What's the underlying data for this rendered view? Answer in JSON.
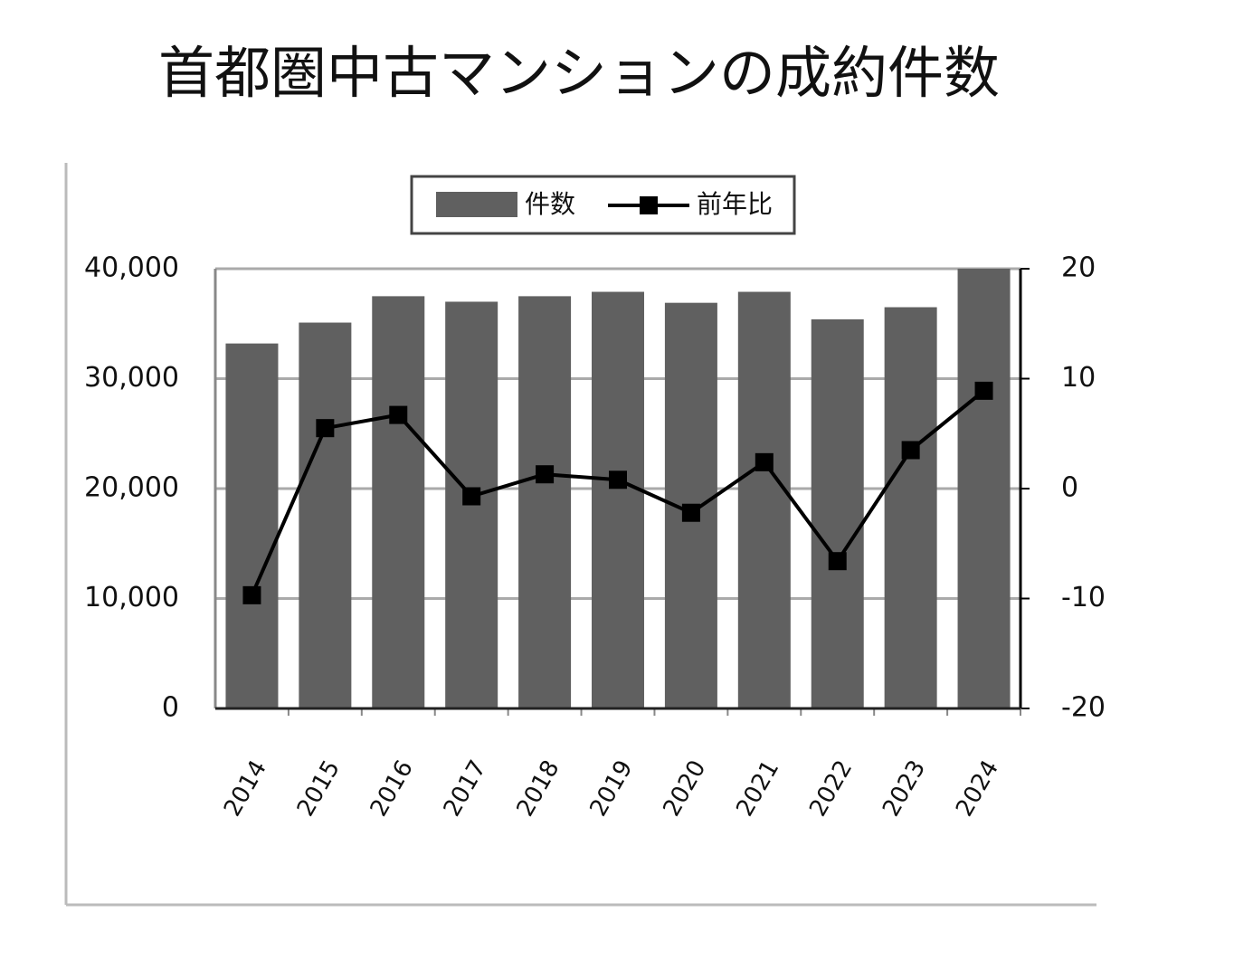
{
  "chart_data": {
    "type": "bar-line",
    "title": "首都圏中古マンションの成約件数",
    "categories": [
      "2014",
      "2015",
      "2016",
      "2017",
      "2018",
      "2019",
      "2020",
      "2021",
      "2022",
      "2023",
      "2024"
    ],
    "series": [
      {
        "name": "件数",
        "type": "bar",
        "color": "#606060",
        "values": [
          33200,
          35100,
          37500,
          37000,
          37500,
          37900,
          36900,
          37900,
          35400,
          36500,
          40000
        ]
      },
      {
        "name": "前年比",
        "type": "line",
        "axis": "y2",
        "color": "#000000",
        "values": [
          -9.7,
          5.5,
          6.7,
          -0.7,
          1.3,
          0.8,
          -2.2,
          2.4,
          -6.6,
          3.5,
          8.9
        ]
      }
    ],
    "ylim": [
      0,
      40000
    ],
    "yticks": [
      0,
      {
        "value": 10000,
        "label": "10,000"
      },
      {
        "value": 20000,
        "label": "20,000"
      },
      {
        "value": 30000,
        "label": "30,000"
      },
      {
        "value": 40000,
        "label": "40,000"
      }
    ],
    "y2lim": [
      -20,
      20
    ],
    "y2ticks": [
      -20,
      -10,
      0,
      10,
      20
    ],
    "grid": true,
    "legend": "top"
  }
}
